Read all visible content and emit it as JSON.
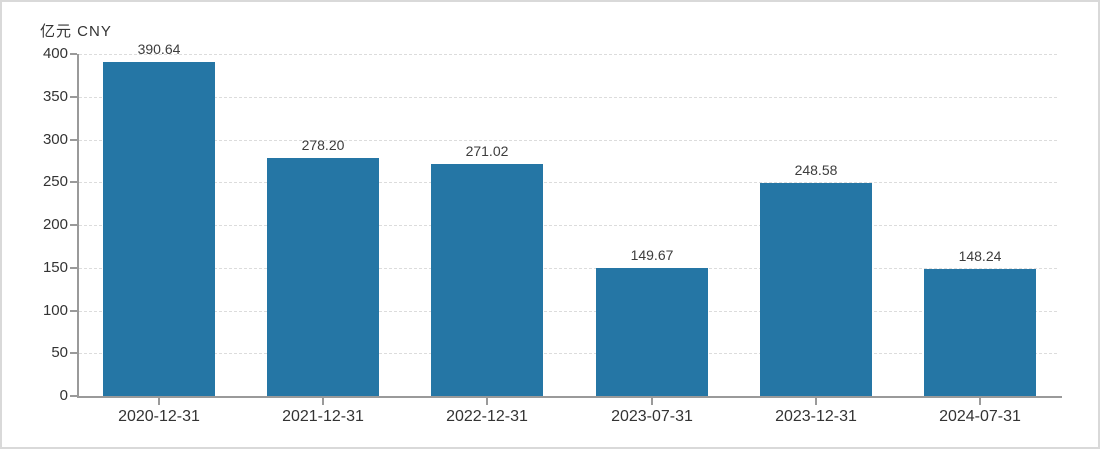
{
  "header": {
    "unit_label": "亿元 CNY"
  },
  "chart_data": {
    "type": "bar",
    "title": "",
    "xlabel": "",
    "ylabel": "亿元 CNY",
    "categories": [
      "2020-12-31",
      "2021-12-31",
      "2022-12-31",
      "2023-07-31",
      "2023-12-31",
      "2024-07-31"
    ],
    "values": [
      390.64,
      278.2,
      271.02,
      149.67,
      248.58,
      148.24
    ],
    "value_labels": [
      "390.64",
      "278.20",
      "271.02",
      "149.67",
      "248.58",
      "148.24"
    ],
    "ylim": [
      0,
      400
    ],
    "yticks": [
      0,
      50,
      100,
      150,
      200,
      250,
      300,
      350,
      400
    ],
    "grid": "horizontal-dashed",
    "legend": "none",
    "bar_color": "#2576a5"
  },
  "colors": {
    "bar": "#2576a5",
    "axis": "#9a9a9a",
    "gridline": "#dcdcdc",
    "text": "#333333",
    "border": "#d9d9d9",
    "background": "#ffffff"
  }
}
